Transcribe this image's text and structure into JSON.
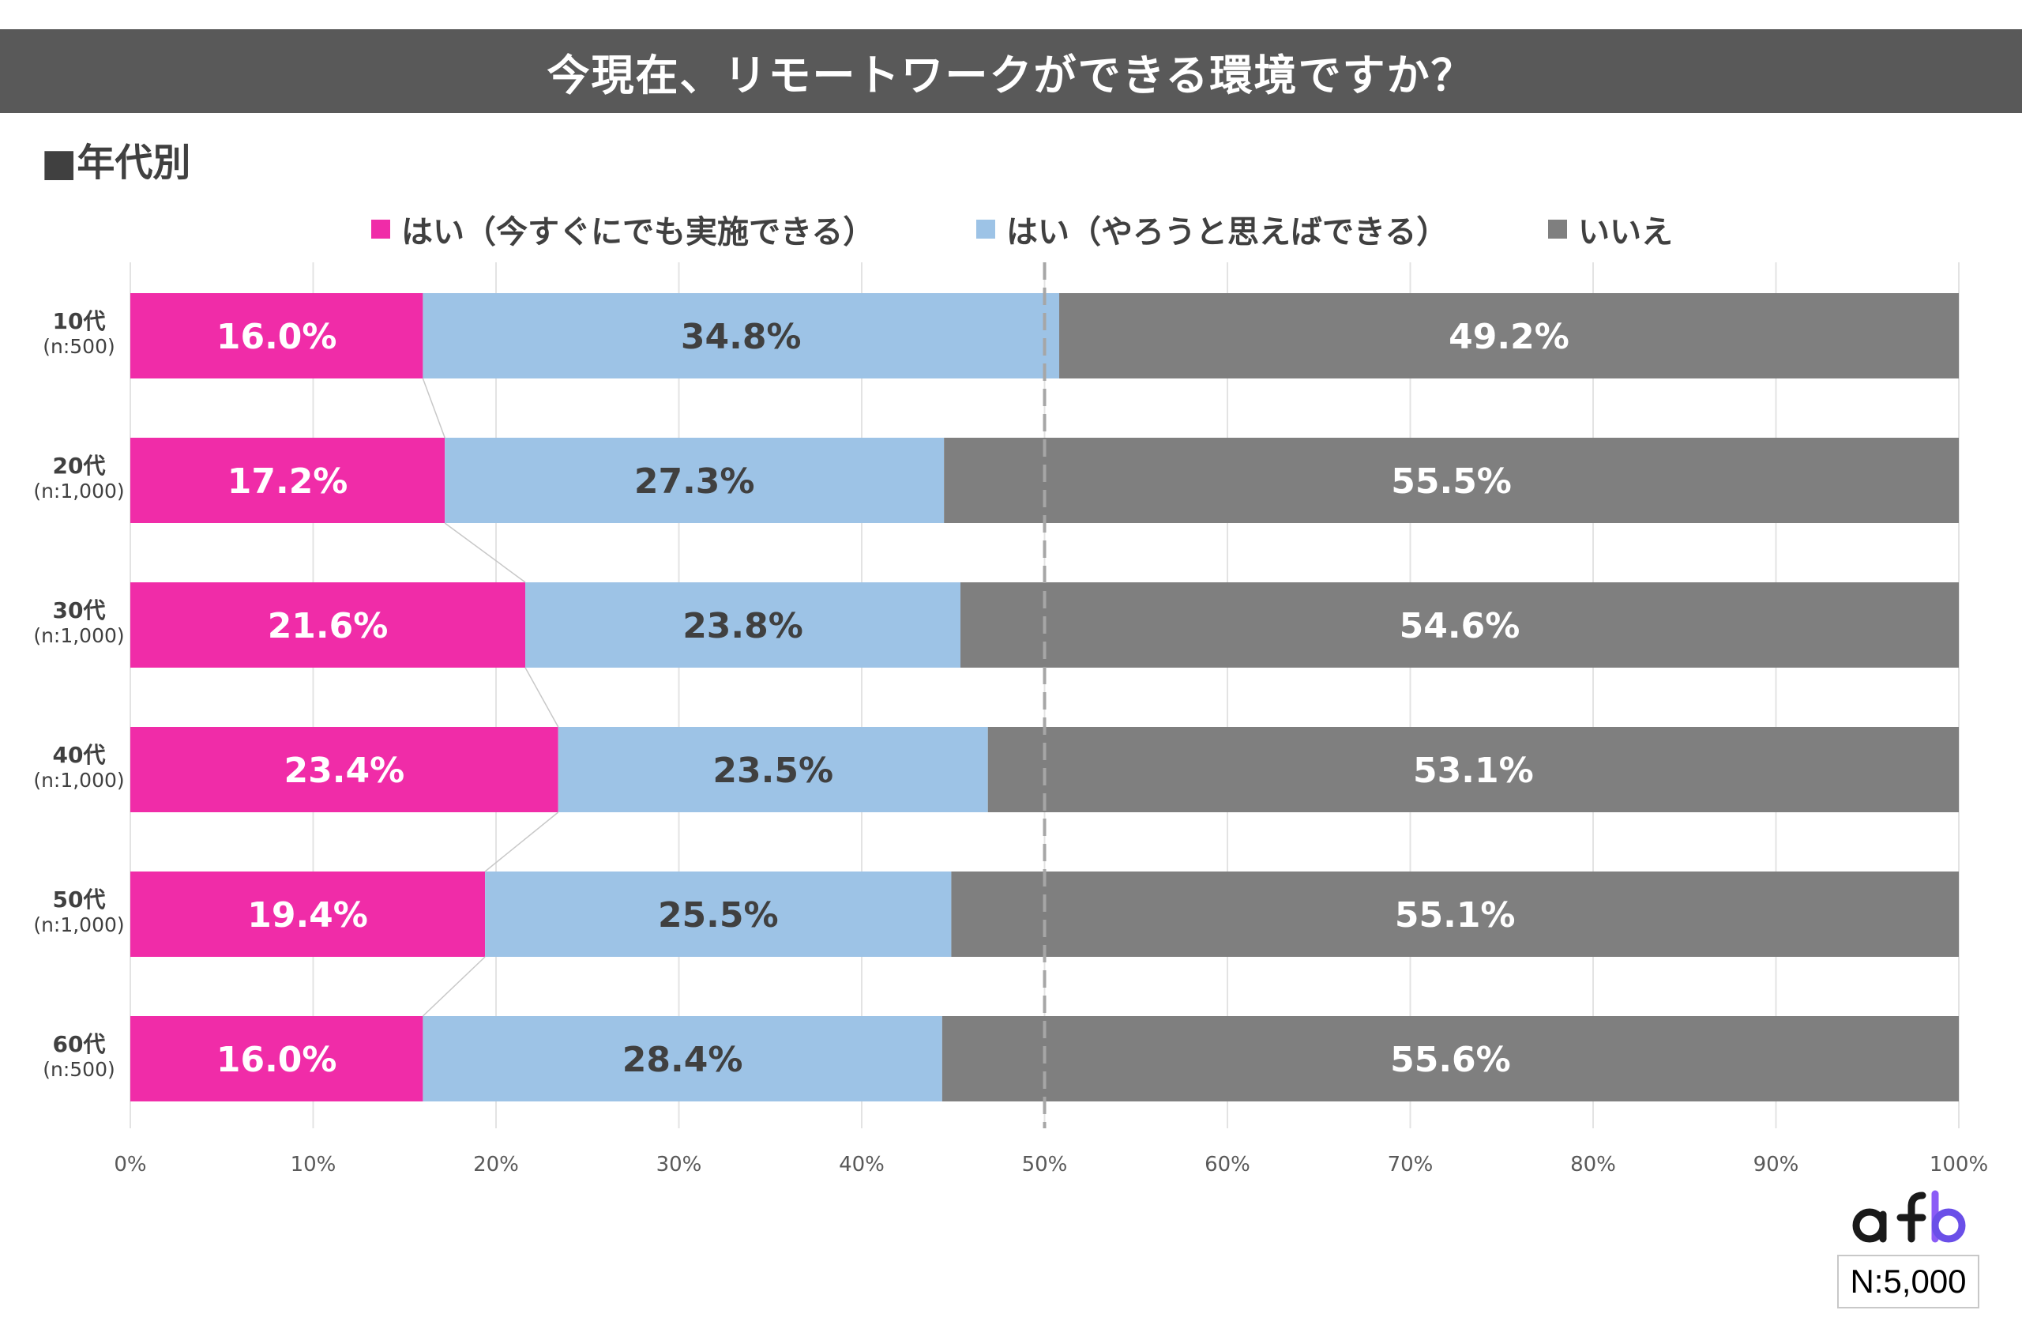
{
  "title": "今現在、リモートワークができる環境ですか？",
  "section_heading": "■年代別",
  "legend": [
    {
      "label": "はい（今すぐにでも実施できる）",
      "color": "#f02ca8"
    },
    {
      "label": "はい（やろうと思えばできる）",
      "color": "#9dc3e6"
    },
    {
      "label": "いいえ",
      "color": "#7f7f7f"
    }
  ],
  "sample_size": "N:5,000",
  "logo": "afb",
  "chart_data": {
    "type": "bar",
    "orientation": "horizontal",
    "stacked": true,
    "categories": [
      "10代",
      "20代",
      "30代",
      "40代",
      "50代",
      "60代"
    ],
    "category_n": [
      "(n:500)",
      "(n:1,000)",
      "(n:1,000)",
      "(n:1,000)",
      "(n:1,000)",
      "(n:500)"
    ],
    "series": [
      {
        "name": "はい（今すぐにでも実施できる）",
        "color": "#f02ca8",
        "label_color": "#ffffff",
        "values": [
          16.0,
          17.2,
          21.6,
          23.4,
          19.4,
          16.0
        ]
      },
      {
        "name": "はい（やろうと思えばできる）",
        "color": "#9dc3e6",
        "label_color": "#404040",
        "values": [
          34.8,
          27.3,
          23.8,
          23.5,
          25.5,
          28.4
        ]
      },
      {
        "name": "いいえ",
        "color": "#7f7f7f",
        "label_color": "#ffffff",
        "values": [
          49.2,
          55.5,
          54.6,
          53.1,
          55.1,
          55.6
        ]
      }
    ],
    "xlim": [
      0,
      100
    ],
    "x_ticks": [
      "0%",
      "10%",
      "20%",
      "30%",
      "40%",
      "50%",
      "60%",
      "70%",
      "80%",
      "90%",
      "100%"
    ],
    "reference_line": 50,
    "grid": true,
    "legend_position": "top"
  }
}
